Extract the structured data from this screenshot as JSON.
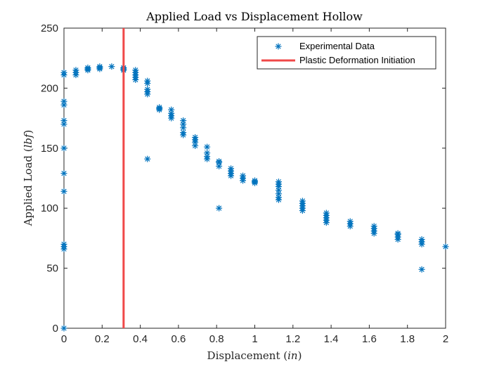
{
  "chart_data": {
    "type": "scatter",
    "title": "Applied Load vs Displacement Hollow",
    "xlabel_text": "Displacement ",
    "xlabel_unit": "in",
    "ylabel_text": "Applied Load ",
    "ylabel_unit": "lbf",
    "xlim": [
      0,
      2
    ],
    "ylim": [
      0,
      250
    ],
    "xticks": [
      "0",
      "0.2",
      "0.4",
      "0.6",
      "0.8",
      "1",
      "1.2",
      "1.4",
      "1.6",
      "1.8",
      "2"
    ],
    "yticks": [
      "0",
      "50",
      "100",
      "150",
      "200",
      "250"
    ],
    "grid": false,
    "legend_position": "top-right",
    "colors": {
      "data": "#0072BD",
      "line": "#F04848"
    },
    "series": [
      {
        "name": "Experimental Data",
        "marker": "asterisk",
        "points": [
          [
            0,
            0
          ],
          [
            0,
            66
          ],
          [
            0,
            68
          ],
          [
            0,
            70
          ],
          [
            0,
            114
          ],
          [
            0,
            129
          ],
          [
            0,
            150
          ],
          [
            0,
            170
          ],
          [
            0,
            173
          ],
          [
            0,
            186
          ],
          [
            0,
            189
          ],
          [
            0,
            211
          ],
          [
            0,
            213
          ],
          [
            0.0625,
            211
          ],
          [
            0.0625,
            213
          ],
          [
            0.0625,
            215
          ],
          [
            0.125,
            215
          ],
          [
            0.125,
            216
          ],
          [
            0.125,
            217
          ],
          [
            0.1875,
            216
          ],
          [
            0.1875,
            217
          ],
          [
            0.1875,
            218
          ],
          [
            0.25,
            218
          ],
          [
            0.3125,
            215
          ],
          [
            0.3125,
            216
          ],
          [
            0.3125,
            217
          ],
          [
            0.375,
            207
          ],
          [
            0.375,
            209
          ],
          [
            0.375,
            211
          ],
          [
            0.375,
            213
          ],
          [
            0.375,
            215
          ],
          [
            0.4375,
            141
          ],
          [
            0.4375,
            195
          ],
          [
            0.4375,
            197
          ],
          [
            0.4375,
            199
          ],
          [
            0.4375,
            204
          ],
          [
            0.4375,
            206
          ],
          [
            0.5,
            182
          ],
          [
            0.5,
            183
          ],
          [
            0.5,
            184
          ],
          [
            0.5625,
            175
          ],
          [
            0.5625,
            177
          ],
          [
            0.5625,
            179
          ],
          [
            0.5625,
            182
          ],
          [
            0.625,
            161
          ],
          [
            0.625,
            163
          ],
          [
            0.625,
            167
          ],
          [
            0.625,
            170
          ],
          [
            0.625,
            173
          ],
          [
            0.6875,
            152
          ],
          [
            0.6875,
            155
          ],
          [
            0.6875,
            157
          ],
          [
            0.6875,
            159
          ],
          [
            0.75,
            141
          ],
          [
            0.75,
            143
          ],
          [
            0.75,
            146
          ],
          [
            0.75,
            151
          ],
          [
            0.8125,
            100
          ],
          [
            0.8125,
            135
          ],
          [
            0.8125,
            138
          ],
          [
            0.8125,
            139
          ],
          [
            0.875,
            127
          ],
          [
            0.875,
            129
          ],
          [
            0.875,
            131
          ],
          [
            0.875,
            133
          ],
          [
            0.9375,
            123
          ],
          [
            0.9375,
            125
          ],
          [
            0.9375,
            127
          ],
          [
            1.0,
            121
          ],
          [
            1.0,
            122
          ],
          [
            1.0,
            123
          ],
          [
            1.125,
            107
          ],
          [
            1.125,
            109
          ],
          [
            1.125,
            112
          ],
          [
            1.125,
            115
          ],
          [
            1.125,
            118
          ],
          [
            1.125,
            120
          ],
          [
            1.125,
            122
          ],
          [
            1.25,
            98
          ],
          [
            1.25,
            100
          ],
          [
            1.25,
            102
          ],
          [
            1.25,
            104
          ],
          [
            1.25,
            106
          ],
          [
            1.375,
            88
          ],
          [
            1.375,
            90
          ],
          [
            1.375,
            92
          ],
          [
            1.375,
            94
          ],
          [
            1.375,
            96
          ],
          [
            1.5,
            85
          ],
          [
            1.5,
            87
          ],
          [
            1.5,
            89
          ],
          [
            1.625,
            79
          ],
          [
            1.625,
            81
          ],
          [
            1.625,
            83
          ],
          [
            1.625,
            85
          ],
          [
            1.75,
            74
          ],
          [
            1.75,
            76
          ],
          [
            1.75,
            78
          ],
          [
            1.75,
            79
          ],
          [
            1.875,
            49
          ],
          [
            1.875,
            70
          ],
          [
            1.875,
            72
          ],
          [
            1.875,
            74
          ],
          [
            2.0,
            68
          ]
        ]
      },
      {
        "name": "Plastic Deformation Initiation",
        "style": "vertical-line",
        "x": 0.3125
      }
    ]
  }
}
